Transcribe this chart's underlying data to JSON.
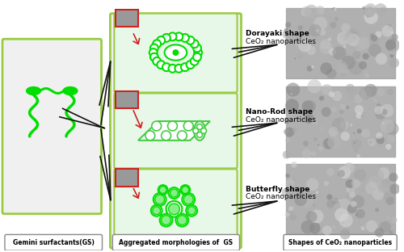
{
  "title": "",
  "bg_color": "#ffffff",
  "green_bright": "#00dd00",
  "green_mid": "#44cc44",
  "green_dark": "#22aa22",
  "green_light": "#88ee88",
  "green_fill": "#aaffaa",
  "label_gs": "Gemini surfactants(GS)",
  "label_morph": "Aggregated morphologies of  GS",
  "label_shapes": "Shapes of CeO₂ nanoparticles",
  "label1_line1": "Dorayaki shape",
  "label1_line2": "CeO₂ nanoparticles",
  "label2_line1": "Nano-Rod shape",
  "label2_line2": "CeO₂ nanoparticles",
  "label3_line1": "Butterfly shape",
  "label3_line2": "CeO₂ nanoparticles",
  "box_border_color": "#99cc44",
  "arrow_color": "#111111"
}
